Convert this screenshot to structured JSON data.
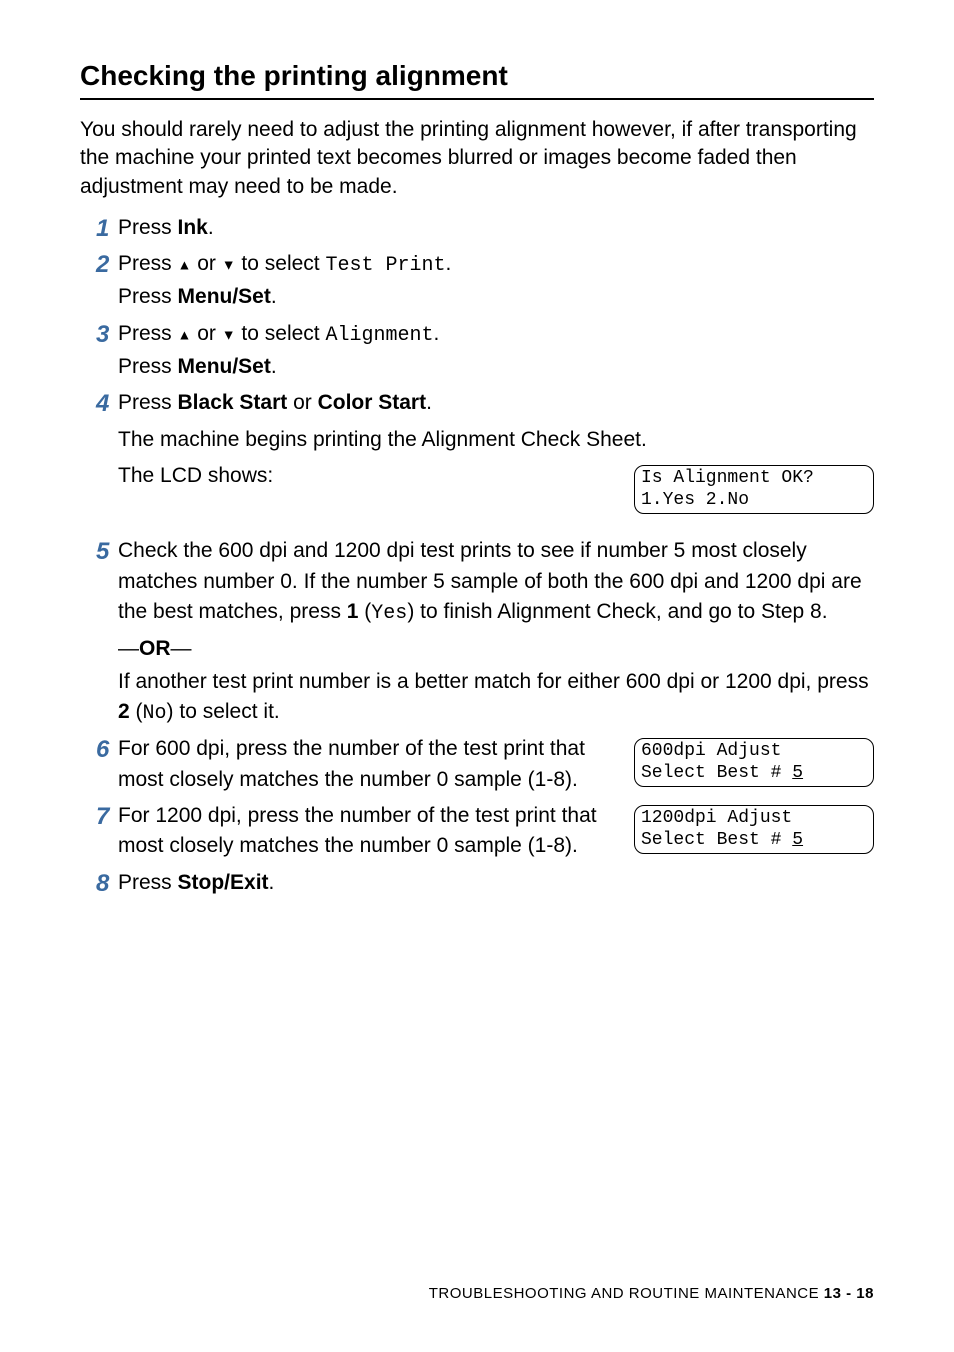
{
  "title": "Checking the printing alignment",
  "intro": "You should rarely need to adjust the printing alignment however, if after transporting the machine your printed text becomes blurred or images become faded then adjustment may need to be made.",
  "steps": {
    "s1": {
      "text_pre": "Press ",
      "bold": "Ink",
      "text_post": "."
    },
    "s2": {
      "line1_pre": "Press ",
      "line1_mid": " or ",
      "line1_post": " to select ",
      "mono": "Test Print",
      "line1_end": ".",
      "line2_pre": "Press ",
      "line2_bold": "Menu/Set",
      "line2_post": "."
    },
    "s3": {
      "line1_pre": "Press ",
      "line1_mid": " or ",
      "line1_post": " to select ",
      "mono": "Alignment",
      "line1_end": ".",
      "line2_pre": "Press ",
      "line2_bold": "Menu/Set",
      "line2_post": "."
    },
    "s4": {
      "line1_pre": "Press ",
      "bold1": "Black Start",
      "mid": " or ",
      "bold2": "Color Start",
      "end": ".",
      "line2": "The machine begins printing the Alignment Check Sheet.",
      "line3": "The LCD shows:",
      "lcd_l1": "Is Alignment OK?",
      "lcd_l2": "1.Yes 2.No"
    },
    "s5": {
      "para1_a": "Check the 600 dpi and 1200 dpi test prints to see if number 5 most closely matches number 0. If the number 5 sample of both the 600 dpi and 1200 dpi are the best matches, press ",
      "para1_bold": "1",
      "para1_b": " (",
      "para1_mono": "Yes",
      "para1_c": ") to finish Alignment Check, and go to Step 8.",
      "or_pre": "—",
      "or_bold": "OR",
      "or_post": "—",
      "para2_a": "If another test print number is a better match for either 600 dpi or 1200 dpi, press ",
      "para2_bold": "2",
      "para2_b": " (",
      "para2_mono": "No",
      "para2_c": ") to select it."
    },
    "s6": {
      "text": "For 600 dpi, press the number of the test print that most closely matches the number 0 sample (1-8).",
      "lcd_l1": "600dpi Adjust",
      "lcd_l2a": "Select Best # ",
      "lcd_l2b": "5"
    },
    "s7": {
      "text": "For 1200 dpi, press the number of the test print that most closely matches the number 0 sample (1-8).",
      "lcd_l1": "1200dpi Adjust",
      "lcd_l2a": "Select Best # ",
      "lcd_l2b": "5"
    },
    "s8": {
      "pre": "Press ",
      "bold": "Stop/Exit",
      "post": "."
    }
  },
  "footer": {
    "label": "TROUBLESHOOTING AND ROUTINE MAINTENANCE   ",
    "page": "13 - 18"
  },
  "colors": {
    "step_num": "#3a6aa0",
    "text": "#000000",
    "rule": "#000000",
    "background": "#ffffff"
  },
  "typography": {
    "title_fontsize": 28,
    "body_fontsize": 21,
    "stepnum_fontsize": 24,
    "lcd_fontsize": 18,
    "footer_fontsize": 15
  }
}
